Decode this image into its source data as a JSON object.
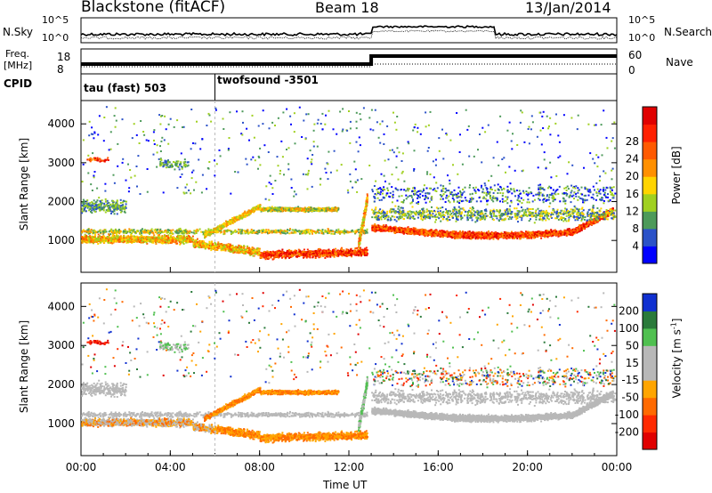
{
  "header": {
    "station": "Blackstone (fitACF)",
    "beam": "Beam 18",
    "date": "13/Jan/2014"
  },
  "noise_panel": {
    "left_label": "N.Sky",
    "right_label": "N.Search",
    "y_ticks": [
      "10^5",
      "10^0"
    ],
    "right_ticks": [
      "10^5",
      "10^0"
    ]
  },
  "freq_panel": {
    "left_label_line1": "Freq.",
    "left_label_line2": "[MHz]",
    "left_ticks": [
      "18",
      "8"
    ],
    "right_label": "Nave",
    "right_ticks": [
      "60",
      "0"
    ]
  },
  "cpid_panel": {
    "label": "CPID",
    "programs": [
      {
        "name": "tau (fast) 503",
        "start_hour": 0
      },
      {
        "name": "twofsound -3501",
        "start_hour": 6
      }
    ]
  },
  "colors": {
    "power": [
      "#0000ff",
      "#2b52c8",
      "#4d9a5a",
      "#a0d020",
      "#ffd400",
      "#ff9000",
      "#ff5a00",
      "#ff2000",
      "#e00000"
    ],
    "velocity": [
      "#1030d0",
      "#2a7a3a",
      "#50c050",
      "#b8b8b8",
      "#b8b8b8",
      "#ffa500",
      "#ff6a00",
      "#ff2a00",
      "#e00000"
    ]
  },
  "chart_data": [
    {
      "type": "heatmap",
      "name": "power",
      "ylabel": "Slant Range [km]",
      "xlim": [
        0,
        24
      ],
      "ylim": [
        180,
        4600
      ],
      "yticks": [
        "1000",
        "2000",
        "3000",
        "4000"
      ],
      "colorbar": {
        "label": "Power [dB]",
        "ticks": [
          "4",
          "8",
          "12",
          "16",
          "20",
          "24",
          "28"
        ],
        "range": [
          0,
          30
        ]
      },
      "features": [
        {
          "desc": "near-range band",
          "start": 0,
          "end": 13,
          "range_km": [
            700,
            1300
          ]
        },
        {
          "desc": "rising arc",
          "start": 5.5,
          "end": 8,
          "range_km": [
            1100,
            1900
          ]
        },
        {
          "desc": "high band",
          "start": 8,
          "end": 12,
          "range_km": [
            1700,
            1950
          ]
        },
        {
          "desc": "post-13UT echoes",
          "start": 13,
          "end": 24,
          "range_km": [
            1000,
            1700
          ]
        }
      ]
    },
    {
      "type": "heatmap",
      "name": "velocity",
      "xlabel": "Time UT",
      "ylabel": "Slant Range [km]",
      "xlim": [
        0,
        24
      ],
      "ylim": [
        180,
        4600
      ],
      "xticks": [
        "00:00",
        "04:00",
        "08:00",
        "12:00",
        "16:00",
        "20:00",
        "00:00"
      ],
      "yticks": [
        "1000",
        "2000",
        "3000",
        "4000"
      ],
      "colorbar": {
        "label": "Velocity [m s",
        "label_sup": "-1",
        "label_end": "]",
        "ticks": [
          "200",
          "100",
          "50",
          "15",
          "-15",
          "-50",
          "-100",
          "-200"
        ]
      }
    }
  ]
}
